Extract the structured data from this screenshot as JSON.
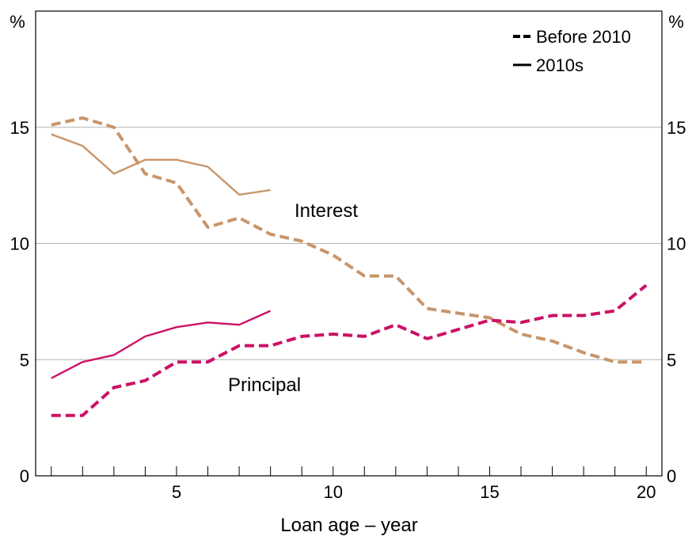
{
  "chart_data": {
    "type": "line",
    "xlabel": "Loan age – year",
    "ylabel_left": "%",
    "ylabel_right": "%",
    "xlim": [
      0.5,
      20.5
    ],
    "ylim": [
      0,
      20
    ],
    "x_ticks": [
      5,
      10,
      15,
      20
    ],
    "y_ticks": [
      0,
      5,
      10,
      15
    ],
    "grid": "horizontal",
    "legend": {
      "placement": "top-right",
      "entries": [
        {
          "label": "Before 2010",
          "style": "dashed"
        },
        {
          "label": "2010s",
          "style": "solid"
        }
      ]
    },
    "annotations": [
      {
        "text": "Interest",
        "color": "#c8956a"
      },
      {
        "text": "Principal",
        "color": "#cc1166"
      }
    ],
    "series": [
      {
        "group": "Interest",
        "period": "Before 2010",
        "style": "dashed",
        "color": "#c8956a",
        "x": [
          1,
          2,
          3,
          4,
          5,
          6,
          7,
          8,
          9,
          10,
          11,
          12,
          13,
          14,
          15,
          16,
          17,
          18,
          19,
          20
        ],
        "values": [
          15.1,
          15.4,
          15.0,
          13.0,
          12.6,
          10.7,
          11.1,
          10.4,
          10.1,
          9.5,
          8.6,
          8.6,
          7.2,
          7.0,
          6.8,
          6.1,
          5.8,
          5.3,
          4.9,
          4.9
        ]
      },
      {
        "group": "Interest",
        "period": "2010s",
        "style": "solid",
        "color": "#c8956a",
        "x": [
          1,
          2,
          3,
          4,
          5,
          6,
          7,
          8
        ],
        "values": [
          14.7,
          14.2,
          13.0,
          13.6,
          13.6,
          13.3,
          12.1,
          12.3
        ]
      },
      {
        "group": "Principal",
        "period": "Before 2010",
        "style": "dashed",
        "color": "#cc1166",
        "x": [
          1,
          2,
          3,
          4,
          5,
          6,
          7,
          8,
          9,
          10,
          11,
          12,
          13,
          14,
          15,
          16,
          17,
          18,
          19,
          20
        ],
        "values": [
          2.6,
          2.6,
          3.8,
          4.1,
          4.9,
          4.9,
          5.6,
          5.6,
          6.0,
          6.1,
          6.0,
          6.5,
          5.9,
          6.3,
          6.7,
          6.6,
          6.9,
          6.9,
          7.1,
          8.2
        ]
      },
      {
        "group": "Principal",
        "period": "2010s",
        "style": "solid",
        "color": "#cc1166",
        "x": [
          1,
          2,
          3,
          4,
          5,
          6,
          7,
          8
        ],
        "values": [
          4.2,
          4.9,
          5.2,
          6.0,
          6.4,
          6.6,
          6.5,
          7.1
        ]
      }
    ]
  }
}
